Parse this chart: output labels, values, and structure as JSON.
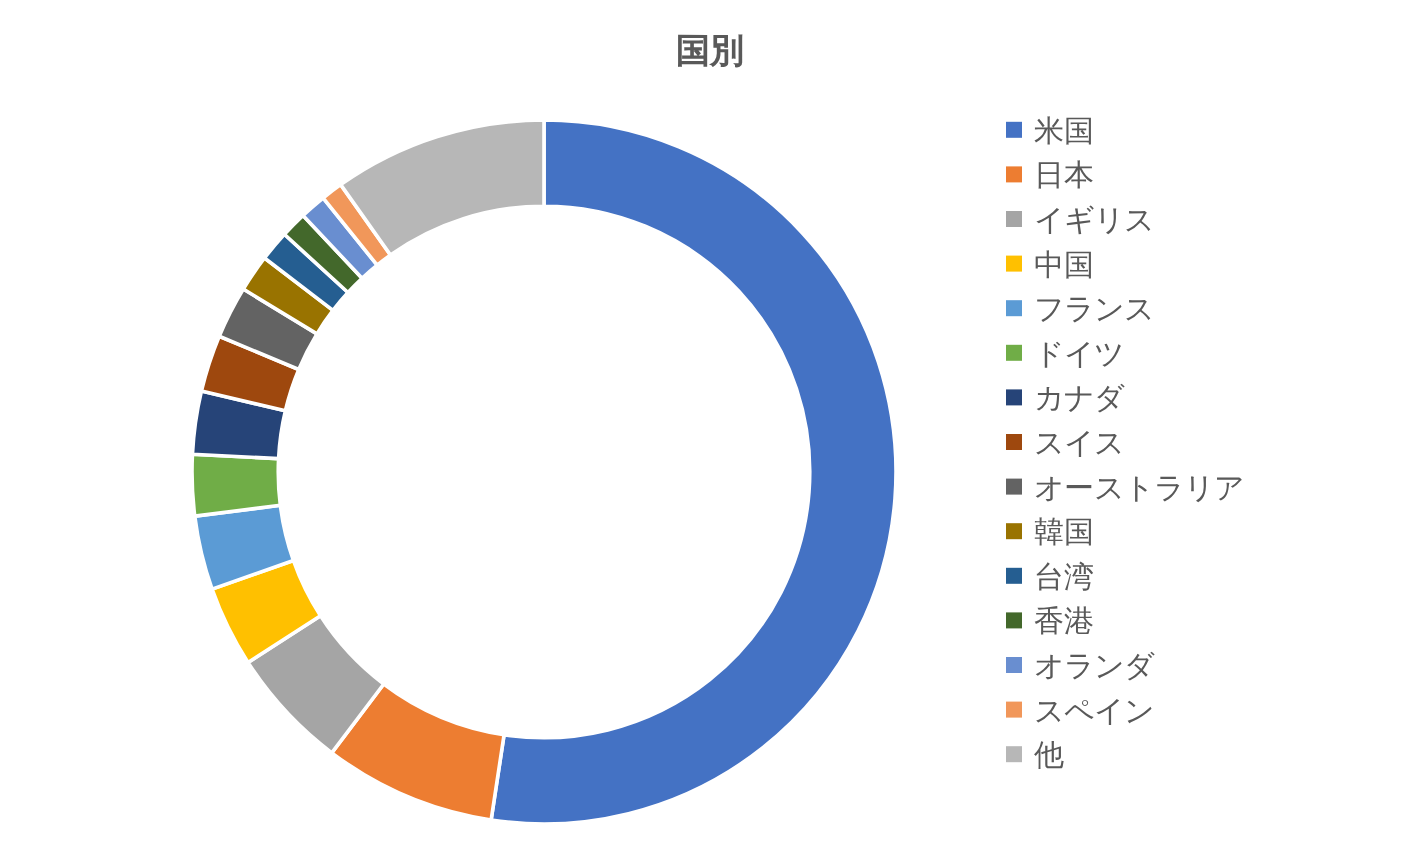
{
  "chart_data": {
    "type": "donut",
    "title": "国別",
    "categories": [
      "米国",
      "日本",
      "イギリス",
      "中国",
      "フランス",
      "ドイツ",
      "カナダ",
      "スイス",
      "オーストラリア",
      "韓国",
      "台湾",
      "香港",
      "オランダ",
      "スペイン",
      "他"
    ],
    "values": [
      52.4,
      7.9,
      5.6,
      3.7,
      3.4,
      2.8,
      2.9,
      2.6,
      2.4,
      1.7,
      1.4,
      1.2,
      1.2,
      1.0,
      9.8
    ],
    "colors": [
      "#4472c4",
      "#ed7d31",
      "#a5a5a5",
      "#ffc000",
      "#5b9bd5",
      "#70ad47",
      "#264478",
      "#9e480e",
      "#636363",
      "#997300",
      "#255e91",
      "#43682b",
      "#698ed0",
      "#f1975a",
      "#b7b7b7"
    ],
    "legend": "right"
  }
}
